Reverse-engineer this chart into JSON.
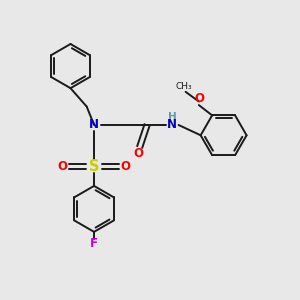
{
  "bg_color": "#e8e8e8",
  "bond_color": "#1a1a1a",
  "N_color": "#0000cc",
  "O_color": "#ff0000",
  "S_color": "#cccc00",
  "F_color": "#cc00cc",
  "H_color": "#5f9ea0",
  "figsize": [
    3.0,
    3.0
  ],
  "dpi": 100,
  "xlim": [
    0,
    10
  ],
  "ylim": [
    0,
    10
  ]
}
